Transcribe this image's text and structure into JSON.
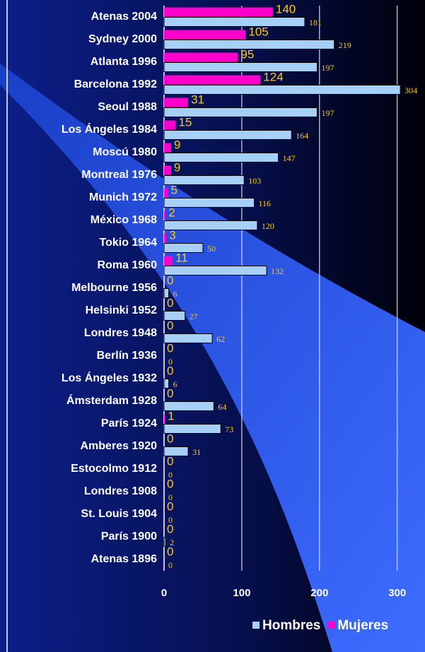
{
  "chart_data": {
    "type": "barh",
    "categories": [
      "Atenas 2004",
      "Sydney 2000",
      "Atlanta 1996",
      "Barcelona 1992",
      "Seoul 1988",
      "Los Ángeles 1984",
      "Moscú 1980",
      "Montreal 1976",
      "Munich 1972",
      "México 1968",
      "Tokio 1964",
      "Roma 1960",
      "Melbourne 1956",
      "Helsinki 1952",
      "Londres 1948",
      "Berlín 1936",
      "Los Ángeles 1932",
      "Ámsterdam 1928",
      "París 1924",
      "Amberes 1920",
      "Estocolmo 1912",
      "Londres 1908",
      "St. Louis 1904",
      "París 1900",
      "Atenas 1896"
    ],
    "series": [
      {
        "name": "Hombres",
        "color": "#a6d0f7",
        "values": [
          181,
          219,
          197,
          304,
          197,
          164,
          147,
          103,
          116,
          120,
          50,
          132,
          6,
          27,
          62,
          0,
          6,
          64,
          73,
          31,
          0,
          0,
          0,
          2,
          0
        ]
      },
      {
        "name": "Mujeres",
        "color": "#ff00cc",
        "values": [
          140,
          105,
          95,
          124,
          31,
          15,
          9,
          9,
          5,
          2,
          3,
          11,
          0,
          0,
          0,
          0,
          0,
          0,
          1,
          0,
          0,
          0,
          0,
          0,
          0
        ]
      }
    ],
    "xlim": [
      0,
      333
    ],
    "xticks": [
      0,
      100,
      200,
      300
    ],
    "grid": true,
    "legend": "bottom"
  }
}
